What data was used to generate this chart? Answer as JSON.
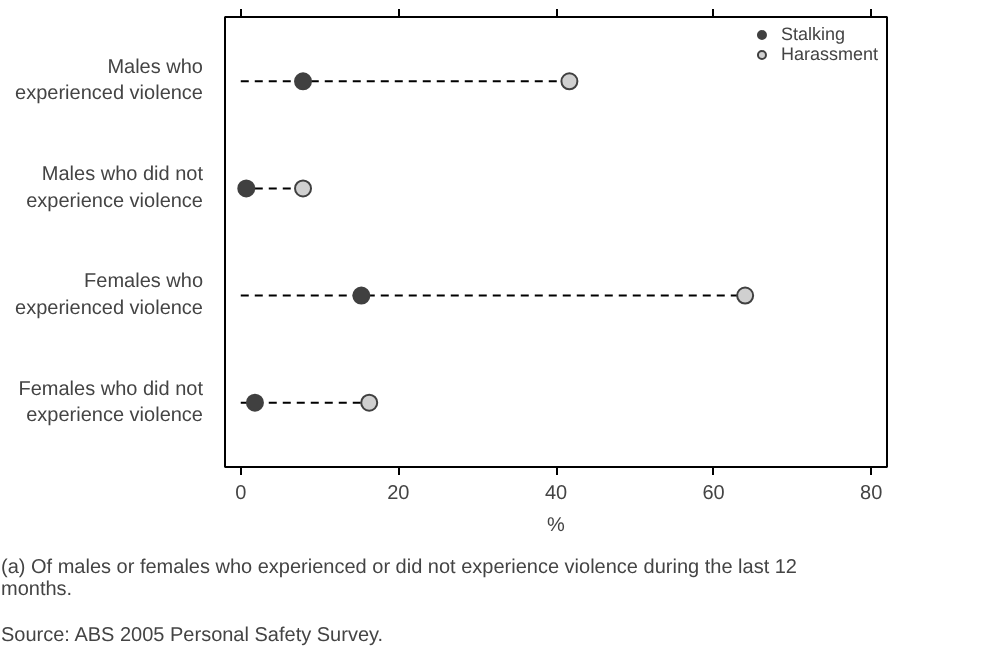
{
  "chart_data": {
    "type": "lollipop",
    "orientation": "horizontal",
    "categories": [
      "Males who experienced violence",
      "Males who did not experience violence",
      "Females who experienced violence",
      "Females who did not experience violence"
    ],
    "series": [
      {
        "name": "Stalking",
        "color": "#404040",
        "values": [
          7.9,
          0.7,
          15.3,
          1.8
        ]
      },
      {
        "name": "Harassment",
        "color": "#d0d0d0",
        "values": [
          41.7,
          7.9,
          64.0,
          16.3
        ]
      }
    ],
    "xlabel": "%",
    "xlim": [
      -2,
      82
    ],
    "xticks": [
      0,
      20,
      40,
      60,
      80
    ],
    "marker": "circle",
    "line_style": "dashed",
    "legend": "top right",
    "grid": false,
    "annotations": [
      "(a) Of males or females who experienced or did not experience violence during the last 12 months.",
      "Source: ABS 2005 Personal Safety Survey."
    ]
  }
}
